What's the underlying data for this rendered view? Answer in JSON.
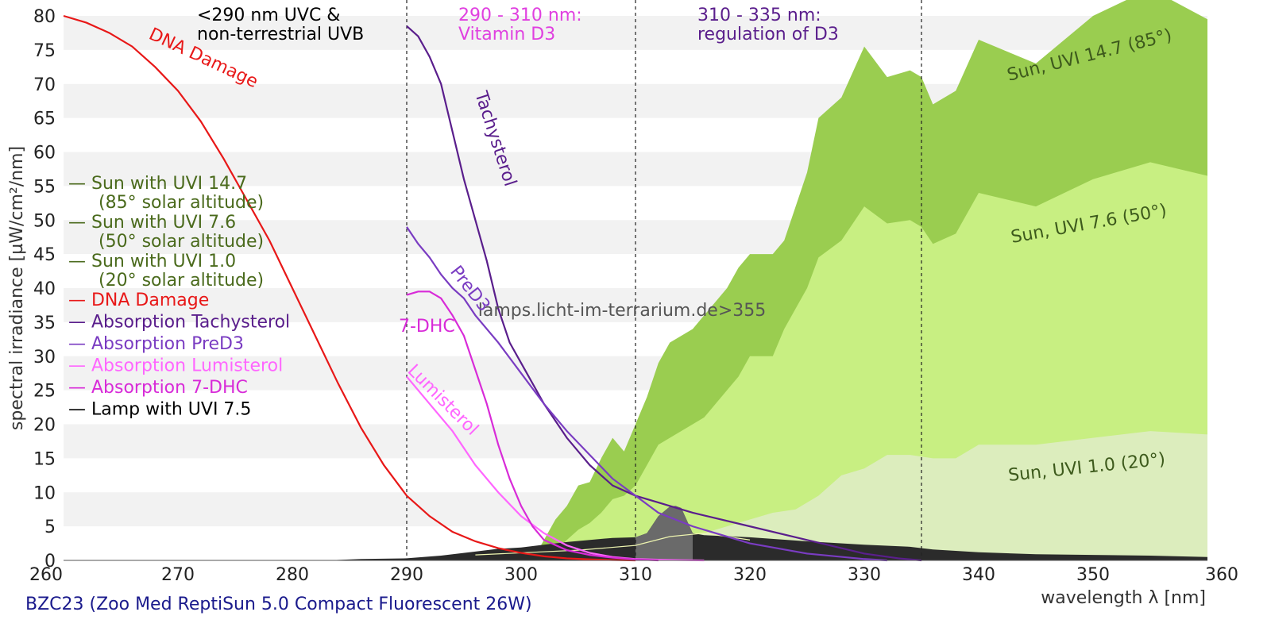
{
  "chart_data": {
    "type": "area",
    "title": "",
    "xlabel": "wavelength λ [nm]",
    "ylabel": "spectral irradiance [µW/cm²/nm]",
    "xlim": [
      260,
      360
    ],
    "ylim": [
      0,
      80
    ],
    "x_ticks": [
      "260",
      "270",
      "280",
      "290",
      "300",
      "310",
      "320",
      "330",
      "340",
      "350",
      "360"
    ],
    "y_ticks": [
      "0",
      "5",
      "10",
      "15",
      "20",
      "25",
      "30",
      "35",
      "40",
      "45",
      "50",
      "55",
      "60",
      "65",
      "70",
      "75",
      "80"
    ],
    "grid": "horizontal bands",
    "region_lines": [
      290,
      310,
      335
    ],
    "region_notes": [
      {
        "line1": "<290 nm UVC &",
        "line2": "non-terrestrial UVB",
        "color": "#000000"
      },
      {
        "line1": "290 - 310 nm:",
        "line2": "Vitamin D3",
        "color": "#e040e0"
      },
      {
        "line1": "310 - 335 nm:",
        "line2": "regulation of D3",
        "color": "#5a1e8c"
      }
    ],
    "watermark": "lamps.licht-im-terrarium.de>355",
    "series": [
      {
        "name": "Sun with UVI 14.7",
        "kind": "area",
        "color": "#9acd50",
        "x": [
          301,
          303,
          304,
          305,
          306,
          307,
          308,
          309,
          310,
          311,
          312,
          313,
          315,
          316,
          318,
          319,
          320,
          322,
          323,
          325,
          326,
          328,
          330,
          332,
          334,
          335,
          336,
          338,
          340,
          345,
          350,
          355,
          360
        ],
        "values": [
          0,
          6,
          8,
          11,
          11.5,
          15,
          18,
          16,
          20,
          24,
          29,
          32,
          34,
          36,
          40,
          43,
          45,
          45,
          47,
          57,
          65,
          68,
          75.5,
          71,
          72,
          71,
          67,
          69,
          76.5,
          73,
          80,
          84,
          79.5
        ]
      },
      {
        "name": "Sun with UVI 7.6",
        "kind": "area",
        "color": "#c8ef82",
        "x": [
          302,
          303,
          304,
          305,
          306,
          307,
          308,
          309,
          310,
          311,
          312,
          313,
          315,
          316,
          318,
          319,
          320,
          322,
          323,
          325,
          326,
          328,
          330,
          332,
          334,
          335,
          336,
          338,
          340,
          345,
          350,
          355,
          360
        ],
        "values": [
          0,
          1.5,
          3,
          4.5,
          5.5,
          7,
          9,
          9.5,
          11,
          14,
          17,
          18,
          20,
          21,
          25,
          27,
          30,
          30,
          34,
          40,
          44.5,
          47,
          52,
          49.5,
          50,
          49,
          46.5,
          48,
          54,
          52,
          56,
          58.5,
          56.5
        ]
      },
      {
        "name": "Sun with UVI 1.0",
        "kind": "area",
        "color": "#dcedbd",
        "x": [
          302,
          305,
          308,
          310,
          312,
          315,
          318,
          320,
          322,
          324,
          326,
          328,
          330,
          332,
          334,
          336,
          338,
          340,
          345,
          350,
          355,
          360
        ],
        "values": [
          0,
          0.5,
          1,
          1.5,
          2.5,
          3.5,
          5,
          6,
          7,
          7.5,
          9.5,
          12.5,
          13.5,
          15.5,
          15.5,
          15,
          15,
          17,
          17,
          18,
          19,
          18.5
        ]
      },
      {
        "name": "Lamp with UVI 7.5",
        "kind": "area",
        "color": "#2b2b2b",
        "x": [
          283,
          286,
          290,
          293,
          296,
          298,
          300,
          302,
          304,
          306,
          308,
          310,
          311,
          312,
          313,
          313.5,
          314,
          315,
          316,
          320,
          325,
          330,
          334,
          336,
          338,
          340,
          345,
          350,
          355,
          360
        ],
        "values": [
          0,
          0.2,
          0.3,
          0.7,
          1.3,
          1.7,
          1.9,
          2.3,
          2.7,
          3,
          3.3,
          3.4,
          4,
          6.5,
          7.9,
          8,
          7.7,
          4,
          3.7,
          3.4,
          2.8,
          2.3,
          2,
          1.6,
          1.4,
          1.2,
          0.9,
          0.8,
          0.7,
          0.5
        ]
      },
      {
        "name": "DNA Damage",
        "kind": "line",
        "color": "#e81818",
        "x": [
          260,
          262,
          264,
          266,
          268,
          270,
          272,
          274,
          276,
          278,
          280,
          282,
          284,
          286,
          288,
          290,
          292,
          294,
          296,
          298,
          300,
          302,
          304,
          306,
          308,
          310
        ],
        "values": [
          80,
          79,
          77.5,
          75.5,
          72.5,
          69,
          64.5,
          59,
          53,
          47,
          40,
          33,
          26,
          19.5,
          14,
          9.5,
          6.5,
          4.2,
          2.8,
          1.8,
          1.1,
          0.6,
          0.3,
          0.15,
          0.05,
          0
        ]
      },
      {
        "name": "Absorption Tachysterol",
        "kind": "line",
        "color": "#5a1e8c",
        "x": [
          290,
          291,
          292,
          293,
          294,
          295,
          296,
          297,
          298,
          299,
          300,
          302,
          304,
          306,
          308,
          310,
          312,
          315,
          320,
          325,
          330,
          333,
          335
        ],
        "values": [
          78.5,
          77,
          74,
          70,
          63,
          56,
          50,
          44,
          37,
          32,
          29,
          23,
          18,
          14,
          11,
          9.5,
          8.5,
          7,
          5,
          3,
          1,
          0.3,
          0
        ]
      },
      {
        "name": "Absorption PreD3",
        "kind": "line",
        "color": "#7a3cc2",
        "x": [
          290,
          291,
          292,
          293,
          294,
          295,
          296,
          298,
          300,
          302,
          304,
          306,
          308,
          310,
          312,
          315,
          320,
          325,
          330,
          332
        ],
        "values": [
          49,
          46.5,
          44.5,
          42,
          40,
          38.5,
          36,
          32,
          27.5,
          23,
          19,
          15.5,
          12,
          9.5,
          7,
          5,
          2.5,
          1,
          0.2,
          0
        ]
      },
      {
        "name": "Absorption Lumisterol",
        "kind": "line",
        "color": "#ff66ff",
        "x": [
          290,
          292,
          294,
          296,
          298,
          300,
          302,
          304,
          306,
          308,
          310,
          312,
          314,
          316
        ],
        "values": [
          27,
          23,
          19,
          14,
          10,
          6.5,
          4,
          2.2,
          1.1,
          0.5,
          0.2,
          0.1,
          0.05,
          0
        ]
      },
      {
        "name": "Absorption 7-DHC",
        "kind": "line",
        "color": "#d82bd8",
        "x": [
          290,
          291,
          292,
          293,
          294,
          295,
          296,
          297,
          298,
          299,
          300,
          301,
          302,
          304,
          306,
          308,
          310,
          312
        ],
        "values": [
          39,
          39.5,
          39.5,
          38.5,
          36,
          33,
          28,
          23,
          17,
          12,
          8,
          5,
          3,
          1.5,
          0.8,
          0.4,
          0.15,
          0
        ]
      }
    ],
    "curve_labels": [
      {
        "text": "DNA Damage",
        "color": "#e81818"
      },
      {
        "text": "Tachysterol",
        "color": "#5a1e8c"
      },
      {
        "text": "PreD3",
        "color": "#7a3cc2"
      },
      {
        "text": "7-DHC",
        "color": "#d82bd8"
      },
      {
        "text": "Lumisterol",
        "color": "#ff66ff"
      }
    ],
    "sun_labels": [
      "Sun, UVI 14.7 (85°)",
      "Sun, UVI 7.6 (50°)",
      "Sun, UVI 1.0 (20°)"
    ],
    "legend": [
      {
        "line1": "— Sun with UVI 14.7",
        "line2": "(85° solar altitude)",
        "color": "#4a6a1c"
      },
      {
        "line1": "— Sun with UVI 7.6",
        "line2": "(50° solar altitude)",
        "color": "#4a6a1c"
      },
      {
        "line1": "— Sun with UVI 1.0",
        "line2": "(20° solar altitude)",
        "color": "#4a6a1c"
      },
      {
        "line1": "— DNA Damage",
        "line2": "",
        "color": "#e81818"
      },
      {
        "line1": "— Absorption Tachysterol",
        "line2": "",
        "color": "#5a1e8c"
      },
      {
        "line1": "— Absorption PreD3",
        "line2": "",
        "color": "#7a3cc2"
      },
      {
        "line1": "— Absorption Lumisterol",
        "line2": "",
        "color": "#ff66ff"
      },
      {
        "line1": "— Absorption 7-DHC",
        "line2": "",
        "color": "#d82bd8"
      },
      {
        "line1": "— Lamp with UVI 7.5",
        "line2": "",
        "color": "#000000"
      }
    ],
    "footer": "BZC23 (Zoo Med ReptiSun 5.0 Compact Fluorescent 26W)",
    "footer_color": "#1a1a8c"
  }
}
